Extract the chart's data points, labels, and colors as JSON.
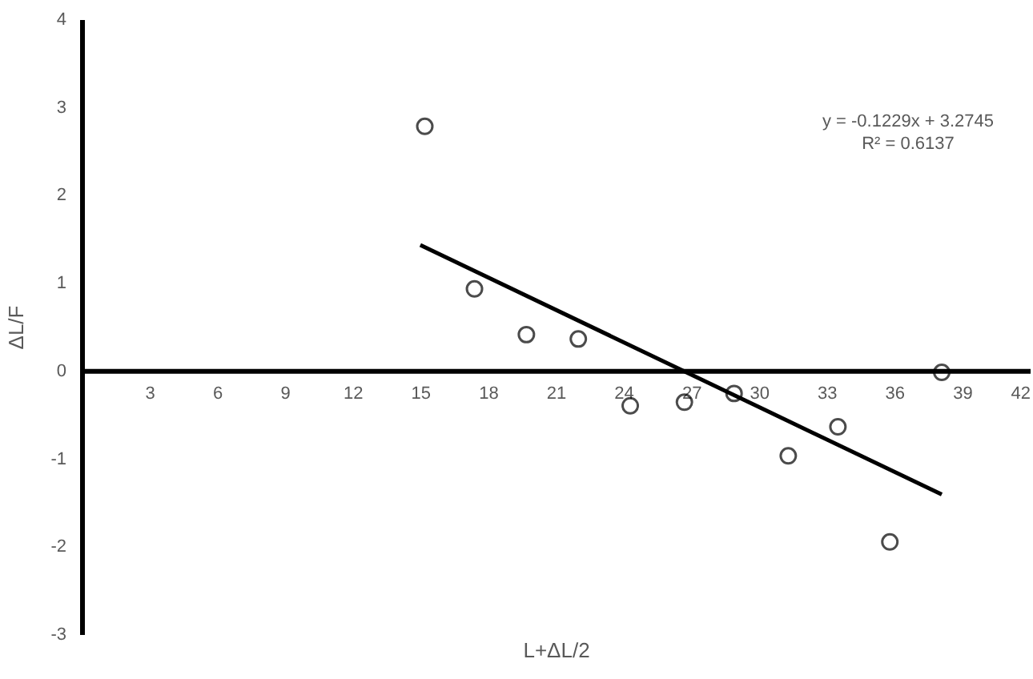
{
  "chart_data": {
    "type": "scatter",
    "xlabel": "L+ΔL/2",
    "ylabel": "ΔL/F",
    "xlim": [
      0,
      42
    ],
    "xticks": [
      {
        "value": 0,
        "label": null
      },
      3,
      6,
      9,
      12,
      15,
      18,
      21,
      24,
      27,
      30,
      33,
      36,
      39,
      42
    ],
    "ylim": [
      -3,
      4
    ],
    "yticks": [
      -3,
      -2,
      -1,
      0,
      1,
      2,
      3,
      4
    ],
    "grid": false,
    "marker": "circle",
    "annotations": [
      "y = -0.1229x + 3.2745",
      "R² = 0.6137"
    ],
    "series": [
      {
        "color": "#000000",
        "x": [
          15.2,
          17.4,
          19.7,
          22.0,
          24.3,
          26.7,
          28.9,
          31.3,
          33.5,
          35.8,
          38.1
        ],
        "values": [
          2.78,
          0.93,
          0.41,
          0.36,
          -0.4,
          -0.36,
          -0.26,
          -0.97,
          -0.64,
          -1.95,
          -0.02
        ]
      },
      {
        "type": "line",
        "color": "#000000",
        "line_style": "solid",
        "marker": "none",
        "x": [
          15,
          38.1
        ],
        "values": [
          1.43,
          -1.41
        ]
      }
    ]
  }
}
